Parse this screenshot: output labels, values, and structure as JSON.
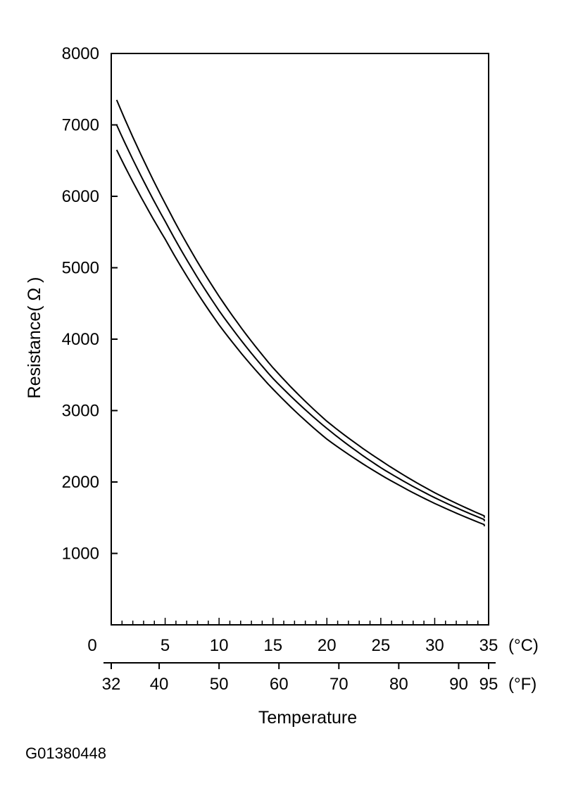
{
  "chart_data": {
    "type": "line",
    "title": "",
    "xlabel": "Temperature",
    "ylabel": "Resistance( Ω )",
    "x_unit_celsius": "(°C)",
    "x_unit_fahrenheit": "(°F)",
    "xlim": [
      0,
      35
    ],
    "ylim": [
      0,
      8000
    ],
    "grid": false,
    "x_ticks_celsius": [
      "0",
      "5",
      "10",
      "15",
      "20",
      "25",
      "30",
      "35"
    ],
    "x_ticks_fahrenheit": [
      "32",
      "40",
      "50",
      "60",
      "70",
      "80",
      "90",
      "95"
    ],
    "y_ticks": [
      "1000",
      "2000",
      "3000",
      "4000",
      "5000",
      "6000",
      "7000",
      "8000"
    ],
    "x": [
      0.5,
      5,
      10,
      15,
      20,
      25,
      30,
      35
    ],
    "series": [
      {
        "values": [
          7350,
          5900,
          4600,
          3600,
          2850,
          2300,
          1850,
          1500
        ]
      },
      {
        "values": [
          7000,
          5650,
          4400,
          3450,
          2750,
          2200,
          1780,
          1450
        ]
      },
      {
        "values": [
          6650,
          5400,
          4200,
          3300,
          2600,
          2100,
          1700,
          1380
        ]
      }
    ]
  },
  "figure_id": "G01380448"
}
